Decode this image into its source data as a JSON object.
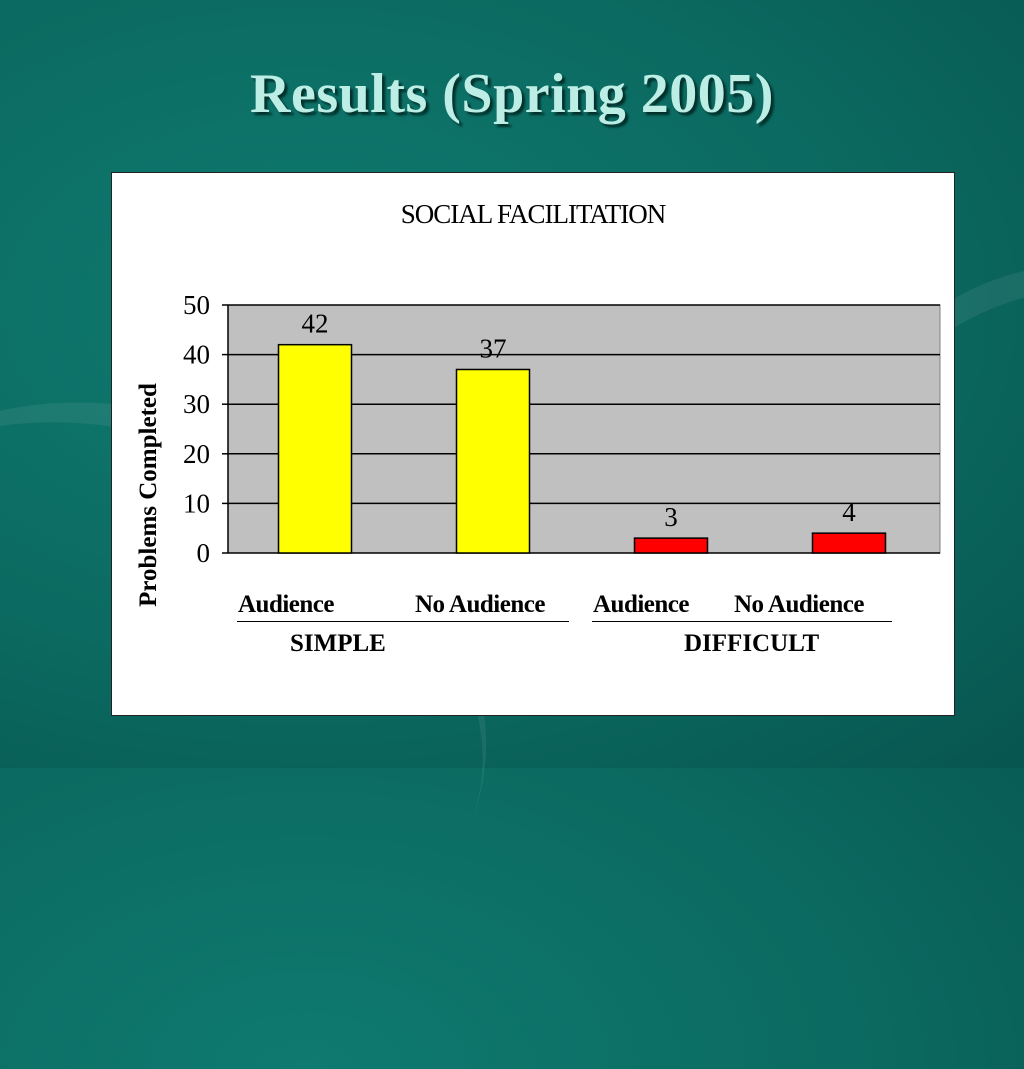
{
  "slide": {
    "title": "Results (Spring 2005)"
  },
  "colors": {
    "background": "#0b6a61",
    "title": "#bdeee6",
    "plot_area": "#c0c0c0",
    "simple_bars": "#ffff00",
    "difficult_bars": "#ff0000"
  },
  "chart_data": {
    "type": "bar",
    "title": "SOCIAL FACILITATION",
    "ylabel": "Problems Completed",
    "xlabel": "",
    "ylim": [
      0,
      50
    ],
    "yticks": [
      0,
      10,
      20,
      30,
      40,
      50
    ],
    "grid": true,
    "categories": [
      "Audience",
      "No Audience",
      "Audience",
      "No Audience"
    ],
    "values": [
      42,
      37,
      3,
      4
    ],
    "bar_colors": [
      "#ffff00",
      "#ffff00",
      "#ff0000",
      "#ff0000"
    ],
    "groups": [
      {
        "label": "SIMPLE",
        "categories": [
          0,
          1
        ]
      },
      {
        "label": "DIFFICULT",
        "categories": [
          2,
          3
        ]
      }
    ]
  }
}
